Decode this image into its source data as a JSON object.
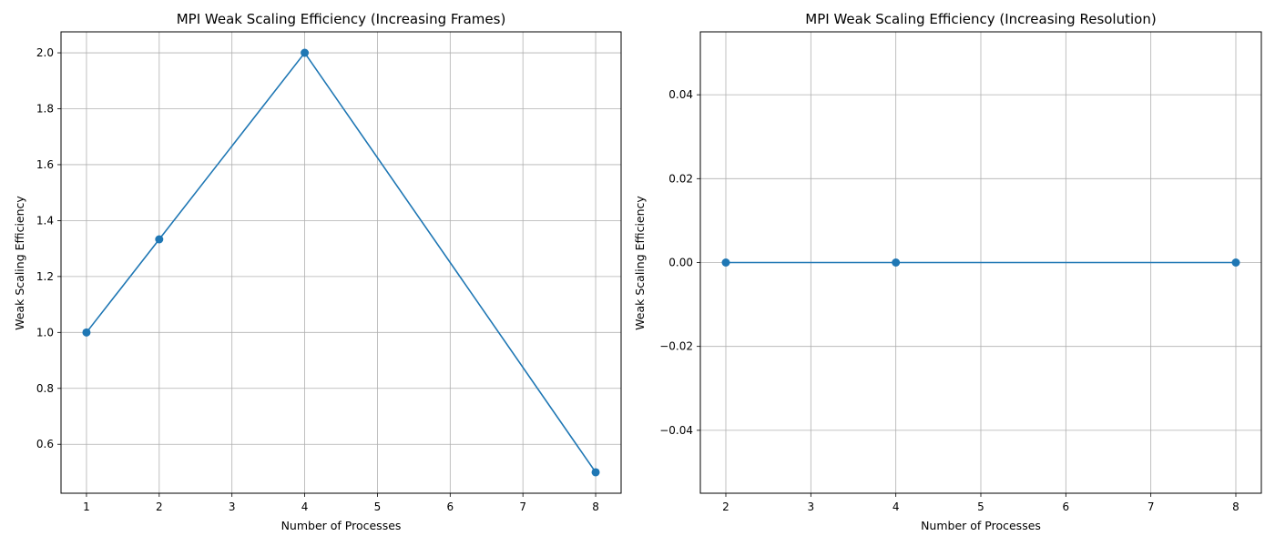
{
  "chart_data": [
    {
      "type": "line",
      "title": "MPI Weak Scaling Efficiency (Increasing Frames)",
      "xlabel": "Number of Processes",
      "ylabel": "Weak Scaling Efficiency",
      "xlim": [
        0.65,
        8.35
      ],
      "ylim": [
        0.425,
        2.075
      ],
      "xticks": [
        1,
        2,
        3,
        4,
        5,
        6,
        7,
        8
      ],
      "yticks": [
        0.6,
        0.8,
        1.0,
        1.2,
        1.4,
        1.6,
        1.8,
        2.0
      ],
      "ytick_labels": [
        "0.6",
        "0.8",
        "1.0",
        "1.2",
        "1.4",
        "1.6",
        "1.8",
        "2.0"
      ],
      "grid": true,
      "series": [
        {
          "color": "#1f77b4",
          "marker": "circle",
          "x": [
            1,
            2,
            4,
            8
          ],
          "y": [
            1.0,
            1.333,
            2.0,
            0.5
          ]
        }
      ]
    },
    {
      "type": "line",
      "title": "MPI Weak Scaling Efficiency (Increasing Resolution)",
      "xlabel": "Number of Processes",
      "ylabel": "Weak Scaling Efficiency",
      "xlim": [
        1.7,
        8.3
      ],
      "ylim": [
        -0.055,
        0.055
      ],
      "xticks": [
        2,
        3,
        4,
        5,
        6,
        7,
        8
      ],
      "yticks": [
        -0.04,
        -0.02,
        0.0,
        0.02,
        0.04
      ],
      "ytick_labels": [
        "−0.04",
        "−0.02",
        "0.00",
        "0.02",
        "0.04"
      ],
      "grid": true,
      "series": [
        {
          "color": "#1f77b4",
          "marker": "circle",
          "x": [
            2,
            4,
            8
          ],
          "y": [
            0.0,
            0.0,
            0.0
          ]
        }
      ]
    }
  ]
}
